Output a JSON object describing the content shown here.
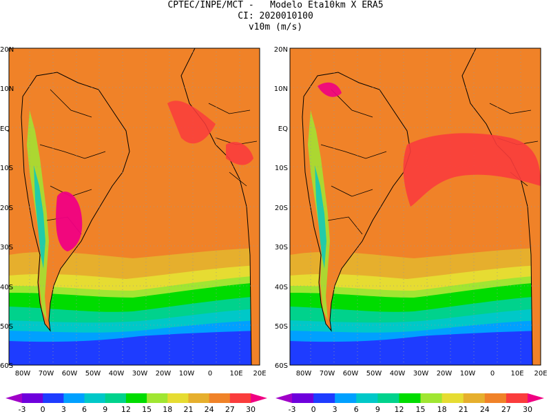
{
  "header": {
    "line1": "CPTEC/INPE/MCT -   Modelo Eta10km X ERA5",
    "line2": "CI: 2020010100",
    "line3": "v10m (m/s)"
  },
  "panels": [
    {
      "name": "left",
      "lat_labels": [
        "20N",
        "10N",
        "EQ",
        "10S",
        "20S",
        "30S",
        "40S",
        "50S",
        "60S"
      ],
      "lon_labels": [
        "80W",
        "70W",
        "60W",
        "50W",
        "40W",
        "30W",
        "20W",
        "10W",
        "0",
        "10E",
        "20E"
      ]
    },
    {
      "name": "right",
      "lat_labels": [
        "20N",
        "10N",
        "EQ",
        "10S",
        "20S",
        "30S",
        "40S",
        "50S",
        "60S"
      ],
      "lon_labels": [
        "80W",
        "70W",
        "60W",
        "50W",
        "40W",
        "30W",
        "20W",
        "10W",
        "0",
        "10E",
        "20E"
      ]
    }
  ],
  "colorbar": {
    "labels": [
      "-3",
      "0",
      "3",
      "6",
      "9",
      "12",
      "15",
      "18",
      "21",
      "24",
      "27",
      "30"
    ],
    "colors": [
      "#a000c8",
      "#6e00dc",
      "#1e3cff",
      "#00a0ff",
      "#00c8c8",
      "#00d28c",
      "#00dc00",
      "#a0e632",
      "#e6dc32",
      "#e6af2d",
      "#f08228",
      "#fa3c3c",
      "#f00082"
    ]
  },
  "fill_colors": {
    "magenta": "#f00082",
    "red": "#fa3c3c",
    "orange": "#f08228",
    "amber": "#e6af2d",
    "yellow": "#e6dc32",
    "lime": "#a0e632",
    "green": "#00dc00",
    "teal": "#00c8c8",
    "cyan": "#00a0ff",
    "blue": "#1e3cff",
    "land": "#f08228"
  }
}
